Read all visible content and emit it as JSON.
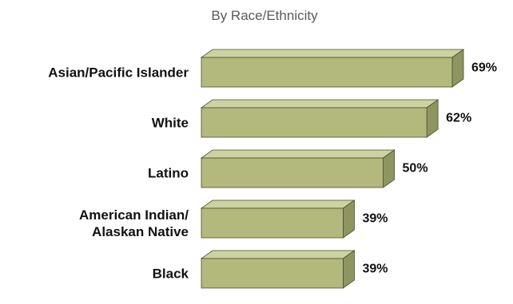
{
  "chart_data": {
    "type": "bar",
    "orientation": "horizontal",
    "title": "By Race/Ethnicity",
    "categories": [
      [
        "Asian/Pacific Islander"
      ],
      [
        "White"
      ],
      [
        "Latino"
      ],
      [
        "American Indian/",
        "Alaskan Native"
      ],
      [
        "Black"
      ]
    ],
    "values": [
      69,
      62,
      50,
      39,
      39
    ],
    "value_labels": [
      "69%",
      "62%",
      "50%",
      "39%",
      "39%"
    ],
    "unit": "%",
    "xlim": [
      0,
      69
    ],
    "grid": false,
    "legend": "none",
    "colors": {
      "bar_front": "#b3b97c",
      "bar_top": "#cdd3a0",
      "bar_side": "#8e9560",
      "bar_outline": "#4a4f2e"
    }
  }
}
